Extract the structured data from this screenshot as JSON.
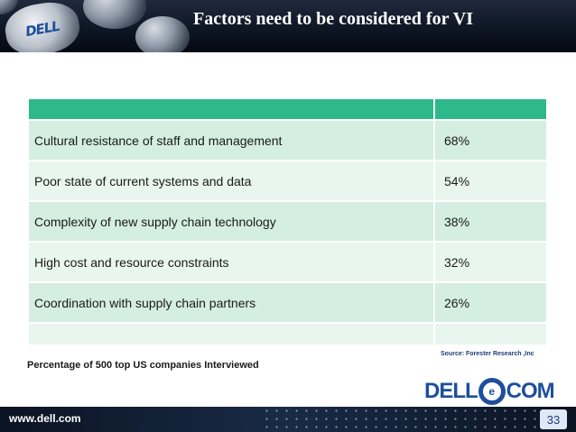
{
  "header": {
    "logo_text": "DELL",
    "title": "Factors need to be considered for VI"
  },
  "table": {
    "rows": [
      {
        "factor": "Cultural resistance of staff and management",
        "percent": "68%"
      },
      {
        "factor": "Poor state of current systems and data",
        "percent": "54%"
      },
      {
        "factor": "Complexity of new supply chain technology",
        "percent": "38%"
      },
      {
        "factor": "High cost and resource constraints",
        "percent": "32%"
      },
      {
        "factor": "Coordination with supply chain partners",
        "percent": "26%"
      }
    ]
  },
  "source": "Source: Forester Research ,Inc",
  "caption": "Percentage of 500 top US companies Interviewed",
  "brand": {
    "left": "DELL",
    "ring": "e",
    "right": "COM"
  },
  "footer": {
    "url": "www.dell.com",
    "page_number": "33"
  },
  "colors": {
    "table_header": "#2fb98a",
    "row_dark": "#d4eee2",
    "row_light": "#e9f6f0",
    "brand_blue": "#1d4f9c"
  }
}
